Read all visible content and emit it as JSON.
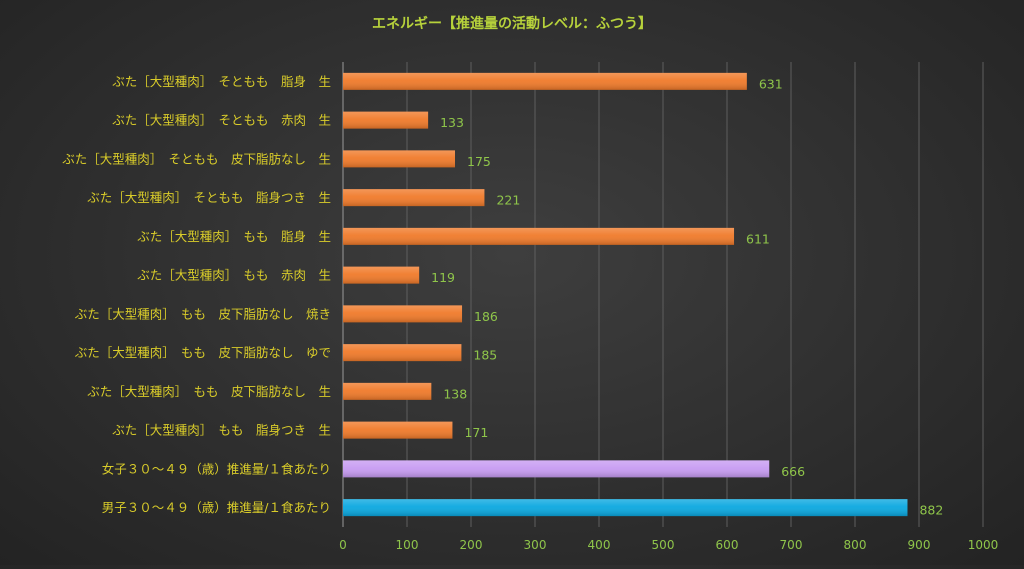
{
  "chart_data": {
    "type": "bar",
    "orientation": "horizontal",
    "title": "エネルギー【推進量の活動レベル：ふつう】",
    "xlim": [
      0,
      1000
    ],
    "ticks": [
      0,
      100,
      200,
      300,
      400,
      500,
      600,
      700,
      800,
      900,
      1000
    ],
    "grid": "vertical",
    "legend": "none",
    "colors": {
      "title": "#b7d23b",
      "category_label": "#d9cc2a",
      "axis_label": "#8fc54a",
      "data_label": "#8fc54a",
      "grid": "#5e5e5e",
      "axis": "#9a9a9a"
    },
    "categories": [
      "ぶた［大型種肉］　そともも　脂身　生",
      "ぶた［大型種肉］　そともも　赤肉　生",
      "ぶた［大型種肉］　そともも　皮下脂肪なし　生",
      "ぶた［大型種肉］　そともも　脂身つき　生",
      "ぶた［大型種肉］　もも　脂身　生",
      "ぶた［大型種肉］　もも　赤肉　生",
      "ぶた［大型種肉］　もも　皮下脂肪なし　焼き",
      "ぶた［大型種肉］　もも　皮下脂肪なし　ゆで",
      "ぶた［大型種肉］　もも　皮下脂肪なし　生",
      "ぶた［大型種肉］　もも　脂身つき　生",
      "女子３０～４９（歳）推進量/１食あたり",
      "男子３０～４９（歳）推進量/１食あたり"
    ],
    "values": [
      631,
      133,
      175,
      221,
      611,
      119,
      186,
      185,
      138,
      171,
      666,
      882
    ],
    "bar_colors": [
      "#f07a2a",
      "#f07a2a",
      "#f07a2a",
      "#f07a2a",
      "#f07a2a",
      "#f07a2a",
      "#f07a2a",
      "#f07a2a",
      "#f07a2a",
      "#f07a2a",
      "#c79bf2",
      "#0aa8e0"
    ]
  }
}
